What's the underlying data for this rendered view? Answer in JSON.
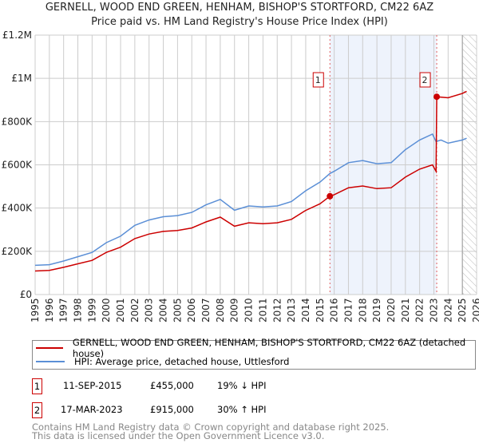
{
  "chart_data": {
    "type": "line",
    "title": "GERNELL, WOOD END GREEN, HENHAM, BISHOP'S STORTFORD, CM22 6AZ",
    "subtitle": "Price paid vs. HM Land Registry's House Price Index (HPI)",
    "xlim": [
      1995,
      2026
    ],
    "ylim": [
      0,
      1200000
    ],
    "x_ticks": [
      "1995",
      "1996",
      "1997",
      "1998",
      "1999",
      "2000",
      "2001",
      "2002",
      "2003",
      "2004",
      "2005",
      "2006",
      "2007",
      "2008",
      "2009",
      "2010",
      "2011",
      "2012",
      "2013",
      "2014",
      "2015",
      "2016",
      "2017",
      "2018",
      "2019",
      "2020",
      "2021",
      "2022",
      "2023",
      "2024",
      "2025",
      "2026"
    ],
    "y_ticks": [
      {
        "v": 0,
        "label": "£0"
      },
      {
        "v": 200000,
        "label": "£200K"
      },
      {
        "v": 400000,
        "label": "£400K"
      },
      {
        "v": 600000,
        "label": "£600K"
      },
      {
        "v": 800000,
        "label": "£800K"
      },
      {
        "v": 1000000,
        "label": "£1M"
      },
      {
        "v": 1200000,
        "label": "£1.2M"
      }
    ],
    "grid": true,
    "shaded_region": [
      2015.7,
      2023.2
    ],
    "hatched_from": 2025.0,
    "series": [
      {
        "name": "GERNELL, WOOD END GREEN, HENHAM, BISHOP'S STORTFORD, CM22 6AZ (detached house)",
        "color": "#cc0000",
        "x": [
          1995,
          1996,
          1997,
          1998,
          1999,
          2000,
          2001,
          2002,
          2003,
          2004,
          2005,
          2006,
          2007,
          2008,
          2009,
          2010,
          2011,
          2012,
          2013,
          2014,
          2015,
          2015.7,
          2016,
          2017,
          2018,
          2019,
          2020,
          2021,
          2022,
          2022.9,
          2023.15,
          2023.2,
          2024,
          2025,
          2025.3
        ],
        "y": [
          109000,
          112000,
          126000,
          142000,
          158000,
          195000,
          219000,
          259000,
          280000,
          292000,
          296000,
          308000,
          336000,
          358000,
          316000,
          332000,
          328000,
          332000,
          348000,
          389000,
          420000,
          455000,
          462000,
          494000,
          502000,
          490000,
          494000,
          543000,
          580000,
          600000,
          570000,
          915000,
          910000,
          930000,
          940000
        ]
      },
      {
        "name": "HPI: Average price, detached house, Uttlesford",
        "color": "#5b8fd6",
        "x": [
          1995,
          1996,
          1997,
          1998,
          1999,
          2000,
          2001,
          2002,
          2003,
          2004,
          2005,
          2006,
          2007,
          2008,
          2009,
          2010,
          2011,
          2012,
          2013,
          2014,
          2015,
          2015.7,
          2016,
          2017,
          2018,
          2019,
          2020,
          2021,
          2022,
          2022.9,
          2023.15,
          2023.5,
          2024,
          2025,
          2025.3
        ],
        "y": [
          135000,
          138000,
          155000,
          175000,
          195000,
          240000,
          270000,
          320000,
          345000,
          360000,
          365000,
          380000,
          415000,
          440000,
          390000,
          410000,
          405000,
          410000,
          430000,
          480000,
          520000,
          560000,
          570000,
          610000,
          620000,
          605000,
          610000,
          670000,
          715000,
          742000,
          708000,
          715000,
          700000,
          715000,
          723000
        ]
      }
    ],
    "sales": [
      {
        "id": "1",
        "x": 2015.7,
        "y": 455000,
        "date": "11-SEP-2015",
        "price": "£455,000",
        "hpi": "19% ↓ HPI"
      },
      {
        "id": "2",
        "x": 2023.2,
        "y": 915000,
        "date": "17-MAR-2023",
        "price": "£915,000",
        "hpi": "30% ↑ HPI"
      }
    ]
  },
  "legend": {
    "red": "GERNELL, WOOD END GREEN, HENHAM, BISHOP'S STORTFORD, CM22 6AZ (detached house)",
    "blue": "HPI: Average price, detached house, Uttlesford"
  },
  "footer": {
    "line1": "Contains HM Land Registry data © Crown copyright and database right 2025.",
    "line2": "This data is licensed under the Open Government Licence v3.0."
  }
}
